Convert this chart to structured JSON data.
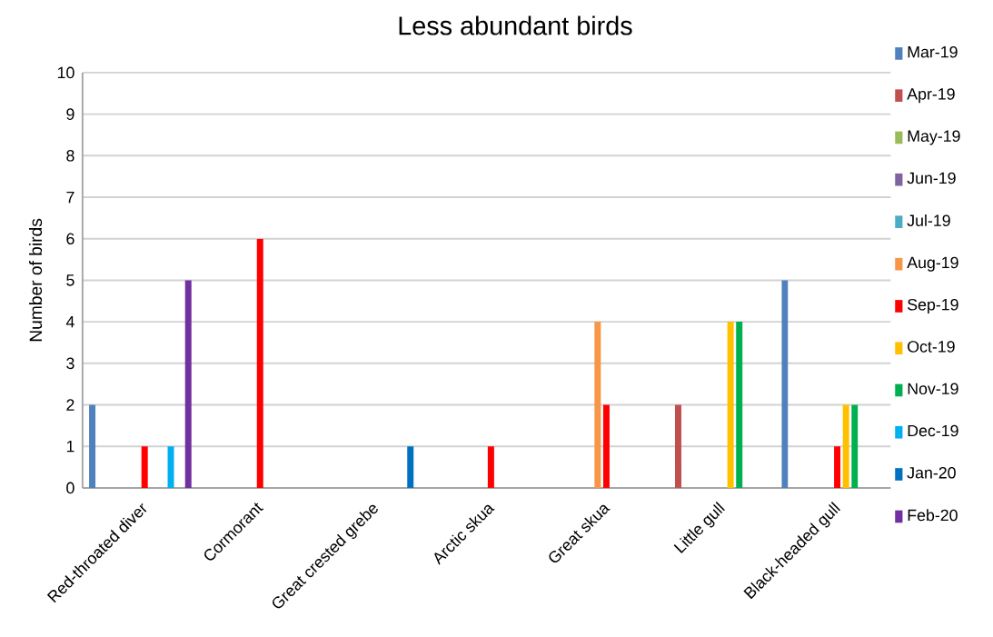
{
  "chart_data": {
    "type": "bar",
    "title": "Less abundant birds",
    "ylabel": "Number of birds",
    "categories": [
      "Red-throated diver",
      "Cormorant",
      "Great crested grebe",
      "Arctic skua",
      "Great skua",
      "Little gull",
      "Black-headed gull"
    ],
    "series": [
      {
        "name": "Mar-19",
        "color": "#4f81bd",
        "values": [
          2,
          0,
          0,
          0,
          0,
          0,
          5
        ]
      },
      {
        "name": "Apr-19",
        "color": "#c0504d",
        "values": [
          0,
          0,
          0,
          0,
          0,
          2,
          0
        ]
      },
      {
        "name": "May-19",
        "color": "#9bbb59",
        "values": [
          0,
          0,
          0,
          0,
          0,
          0,
          0
        ]
      },
      {
        "name": "Jun-19",
        "color": "#8064a2",
        "values": [
          0,
          0,
          0,
          0,
          0,
          0,
          0
        ]
      },
      {
        "name": "Jul-19",
        "color": "#4bacc6",
        "values": [
          0,
          0,
          0,
          0,
          0,
          0,
          0
        ]
      },
      {
        "name": "Aug-19",
        "color": "#f79646",
        "values": [
          0,
          0,
          0,
          0,
          4,
          0,
          0
        ]
      },
      {
        "name": "Sep-19",
        "color": "#ff0000",
        "values": [
          1,
          6,
          0,
          1,
          2,
          0,
          1
        ]
      },
      {
        "name": "Oct-19",
        "color": "#ffc000",
        "values": [
          0,
          0,
          0,
          0,
          0,
          4,
          2
        ]
      },
      {
        "name": "Nov-19",
        "color": "#00b050",
        "values": [
          0,
          0,
          0,
          0,
          0,
          4,
          2
        ]
      },
      {
        "name": "Dec-19",
        "color": "#00b0f0",
        "values": [
          1,
          0,
          0,
          0,
          0,
          0,
          0
        ]
      },
      {
        "name": "Jan-20",
        "color": "#0070c0",
        "values": [
          0,
          0,
          1,
          0,
          0,
          0,
          0
        ]
      },
      {
        "name": "Feb-20",
        "color": "#7030a0",
        "values": [
          5,
          0,
          0,
          0,
          0,
          0,
          0
        ]
      }
    ],
    "ylim": [
      0,
      10
    ],
    "yticks": [
      0,
      1,
      2,
      3,
      4,
      5,
      6,
      7,
      8,
      9,
      10
    ],
    "grid": "y",
    "legend": "right"
  }
}
